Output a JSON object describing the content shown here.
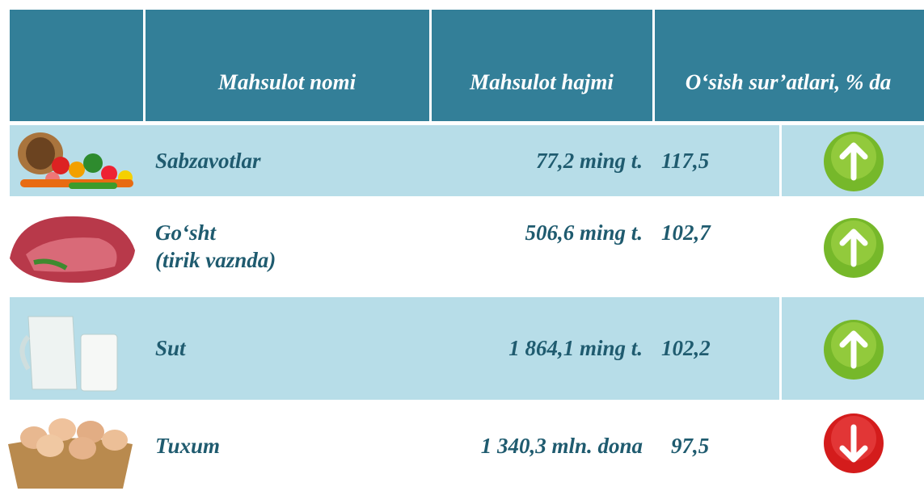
{
  "header": {
    "columns": [
      "Mahsulot nomi",
      "Mahsulot hajmi",
      "O‘sish sur’atlari, % da"
    ]
  },
  "rows": [
    {
      "name": [
        "Sabzavotlar"
      ],
      "volume": "77,2 ming t.",
      "growth": "117,5"
    },
    {
      "name": [
        "Go‘sht",
        "(tirik vaznda)"
      ],
      "volume": "506,6 ming t.",
      "growth": "102,7"
    },
    {
      "name": [
        "Sut"
      ],
      "volume": "1 864,1 ming t.",
      "growth": "102,2"
    },
    {
      "name": [
        "Tuxum"
      ],
      "volume": "1 340,3 mln. dona",
      "growth": "97,5"
    }
  ]
}
